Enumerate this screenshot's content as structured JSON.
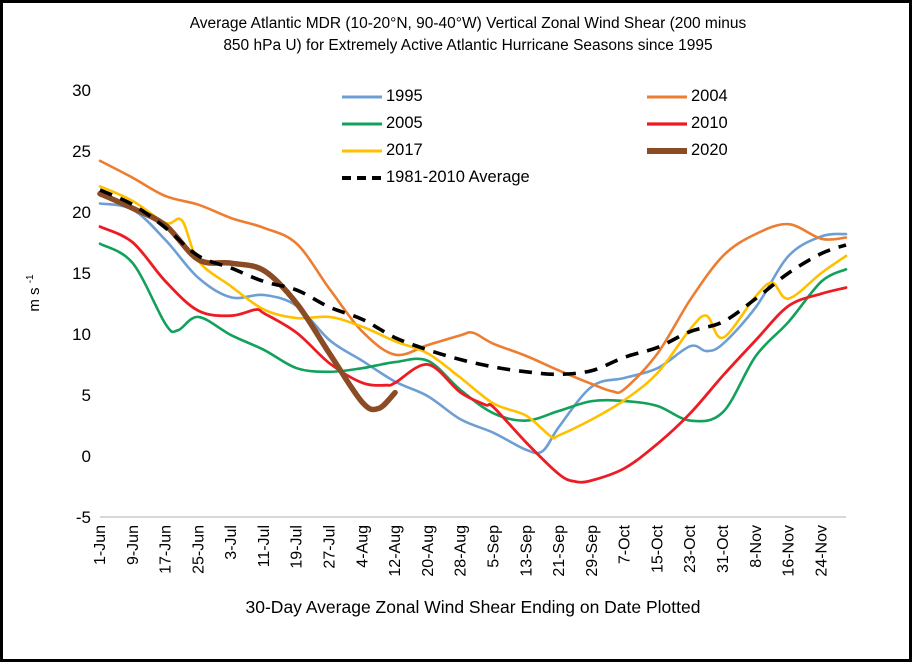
{
  "window": {
    "background": "#ffffff",
    "border_color": "#000000"
  },
  "title": {
    "line1": "Average Atlantic MDR (10-20°N, 90-40°W) Vertical Zonal Wind Shear (200 minus",
    "line2": "850 hPa U) for Extremely Active Atlantic Hurricane Seasons since 1995"
  },
  "y_axis": {
    "label_base": "m s",
    "label_sup": "-1",
    "ticks": [
      30,
      25,
      20,
      15,
      10,
      5,
      0,
      -5
    ],
    "min": -5,
    "max": 30,
    "axis_line_color": "#bfbfbf"
  },
  "x_axis": {
    "title": "30-Day Average Zonal Wind Shear Ending on Date Plotted",
    "tick_labels": [
      "1-Jun",
      "9-Jun",
      "17-Jun",
      "25-Jun",
      "3-Jul",
      "11-Jul",
      "19-Jul",
      "27-Jul",
      "4-Aug",
      "12-Aug",
      "20-Aug",
      "28-Aug",
      "5-Sep",
      "13-Sep",
      "21-Sep",
      "29-Sep",
      "7-Oct",
      "15-Oct",
      "23-Oct",
      "31-Oct",
      "8-Nov",
      "16-Nov",
      "24-Nov"
    ],
    "tick_interval_days": 8,
    "start_date": "1-Jun",
    "end_date": "30-Nov"
  },
  "legend": {
    "columns": [
      [
        "1995",
        "2005",
        "2017",
        "1981-2010 Average"
      ],
      [
        "2004",
        "2010",
        "2020"
      ]
    ]
  },
  "chart_data": {
    "type": "line",
    "title": "Average Atlantic MDR (10-20°N, 90-40°W) Vertical Zonal Wind Shear (200 minus 850 hPa U) for Extremely Active Atlantic Hurricane Seasons since 1995",
    "xlabel": "30-Day Average Zonal Wind Shear Ending on Date Plotted",
    "ylabel": "m s-1",
    "ylim": [
      -5,
      30
    ],
    "x_unit": "days_after_1_Jun",
    "x_domain_days": [
      0,
      182
    ],
    "grid": false,
    "legend_position": "top-inside",
    "series": [
      {
        "name": "1995",
        "color": "#6d9fd4",
        "width": 2.6,
        "dash": null,
        "points": [
          [
            0,
            20.7
          ],
          [
            8,
            20.2
          ],
          [
            16,
            17.7
          ],
          [
            24,
            14.6
          ],
          [
            32,
            13.0
          ],
          [
            40,
            13.2
          ],
          [
            48,
            12.3
          ],
          [
            56,
            9.5
          ],
          [
            64,
            7.8
          ],
          [
            72,
            6.1
          ],
          [
            80,
            4.9
          ],
          [
            88,
            3.0
          ],
          [
            96,
            1.9
          ],
          [
            104,
            0.5
          ],
          [
            108,
            0.4
          ],
          [
            112,
            2.4
          ],
          [
            120,
            5.7
          ],
          [
            128,
            6.4
          ],
          [
            136,
            7.2
          ],
          [
            144,
            9.0
          ],
          [
            148,
            8.6
          ],
          [
            152,
            9.2
          ],
          [
            160,
            12.2
          ],
          [
            168,
            16.4
          ],
          [
            176,
            18.0
          ],
          [
            182,
            18.2
          ]
        ]
      },
      {
        "name": "2004",
        "color": "#ed7d31",
        "width": 2.6,
        "dash": null,
        "points": [
          [
            0,
            24.2
          ],
          [
            8,
            22.8
          ],
          [
            16,
            21.3
          ],
          [
            24,
            20.6
          ],
          [
            32,
            19.5
          ],
          [
            40,
            18.7
          ],
          [
            48,
            17.4
          ],
          [
            56,
            13.7
          ],
          [
            64,
            10.2
          ],
          [
            72,
            8.3
          ],
          [
            80,
            9.1
          ],
          [
            88,
            9.9
          ],
          [
            91,
            10.1
          ],
          [
            96,
            9.2
          ],
          [
            104,
            8.2
          ],
          [
            112,
            7.0
          ],
          [
            120,
            5.9
          ],
          [
            125,
            5.3
          ],
          [
            128,
            5.5
          ],
          [
            136,
            8.4
          ],
          [
            144,
            12.8
          ],
          [
            152,
            16.4
          ],
          [
            160,
            18.2
          ],
          [
            168,
            19.0
          ],
          [
            176,
            17.8
          ],
          [
            182,
            17.9
          ]
        ]
      },
      {
        "name": "2005",
        "color": "#12a15b",
        "width": 2.6,
        "dash": null,
        "points": [
          [
            0,
            17.4
          ],
          [
            8,
            15.8
          ],
          [
            16,
            10.8
          ],
          [
            19,
            10.3
          ],
          [
            24,
            11.4
          ],
          [
            32,
            9.9
          ],
          [
            40,
            8.7
          ],
          [
            48,
            7.2
          ],
          [
            56,
            6.9
          ],
          [
            64,
            7.2
          ],
          [
            72,
            7.7
          ],
          [
            80,
            7.8
          ],
          [
            88,
            5.4
          ],
          [
            96,
            3.5
          ],
          [
            104,
            2.9
          ],
          [
            112,
            3.7
          ],
          [
            120,
            4.5
          ],
          [
            128,
            4.5
          ],
          [
            136,
            4.1
          ],
          [
            144,
            2.9
          ],
          [
            152,
            3.6
          ],
          [
            160,
            8.2
          ],
          [
            168,
            11.0
          ],
          [
            176,
            14.3
          ],
          [
            182,
            15.3
          ]
        ]
      },
      {
        "name": "2010",
        "color": "#ed1c24",
        "width": 2.8,
        "dash": null,
        "points": [
          [
            0,
            18.8
          ],
          [
            8,
            17.5
          ],
          [
            16,
            14.3
          ],
          [
            24,
            11.9
          ],
          [
            32,
            11.5
          ],
          [
            38,
            12.0
          ],
          [
            40,
            11.7
          ],
          [
            48,
            10.1
          ],
          [
            56,
            7.6
          ],
          [
            64,
            6.0
          ],
          [
            70,
            5.8
          ],
          [
            72,
            6.0
          ],
          [
            80,
            7.5
          ],
          [
            88,
            5.2
          ],
          [
            94,
            4.2
          ],
          [
            96,
            4.0
          ],
          [
            104,
            1.1
          ],
          [
            112,
            -1.5
          ],
          [
            116,
            -2.1
          ],
          [
            120,
            -2.0
          ],
          [
            128,
            -1.0
          ],
          [
            136,
            1.0
          ],
          [
            144,
            3.5
          ],
          [
            152,
            6.6
          ],
          [
            160,
            9.5
          ],
          [
            168,
            12.3
          ],
          [
            176,
            13.3
          ],
          [
            182,
            13.8
          ]
        ]
      },
      {
        "name": "2017",
        "color": "#ffc000",
        "width": 2.6,
        "dash": null,
        "points": [
          [
            0,
            22.1
          ],
          [
            8,
            20.9
          ],
          [
            16,
            19.1
          ],
          [
            20,
            19.3
          ],
          [
            24,
            16.0
          ],
          [
            32,
            13.9
          ],
          [
            40,
            12.0
          ],
          [
            48,
            11.3
          ],
          [
            56,
            11.4
          ],
          [
            64,
            10.6
          ],
          [
            72,
            9.4
          ],
          [
            80,
            8.4
          ],
          [
            88,
            6.4
          ],
          [
            96,
            4.3
          ],
          [
            104,
            3.3
          ],
          [
            110,
            1.6
          ],
          [
            112,
            1.7
          ],
          [
            120,
            3.0
          ],
          [
            128,
            4.6
          ],
          [
            136,
            6.8
          ],
          [
            144,
            10.4
          ],
          [
            148,
            11.5
          ],
          [
            152,
            9.7
          ],
          [
            160,
            13.1
          ],
          [
            164,
            14.2
          ],
          [
            168,
            12.9
          ],
          [
            176,
            15.0
          ],
          [
            182,
            16.4
          ]
        ]
      },
      {
        "name": "2020",
        "color": "#8b4b24",
        "width": 5.5,
        "dash": null,
        "points": [
          [
            0,
            21.5
          ],
          [
            8,
            20.3
          ],
          [
            16,
            18.9
          ],
          [
            24,
            16.1
          ],
          [
            32,
            15.8
          ],
          [
            40,
            15.2
          ],
          [
            48,
            12.5
          ],
          [
            56,
            8.4
          ],
          [
            64,
            4.4
          ],
          [
            68,
            3.9
          ],
          [
            72,
            5.2
          ]
        ]
      },
      {
        "name": "1981-2010 Average",
        "color": "#000000",
        "width": 3.6,
        "dash": [
          13,
          9
        ],
        "points": [
          [
            0,
            21.8
          ],
          [
            8,
            20.6
          ],
          [
            16,
            18.7
          ],
          [
            24,
            16.4
          ],
          [
            32,
            15.4
          ],
          [
            40,
            14.3
          ],
          [
            48,
            13.6
          ],
          [
            56,
            12.2
          ],
          [
            64,
            11.2
          ],
          [
            72,
            9.7
          ],
          [
            80,
            8.7
          ],
          [
            88,
            7.9
          ],
          [
            96,
            7.3
          ],
          [
            104,
            6.9
          ],
          [
            112,
            6.7
          ],
          [
            120,
            7.0
          ],
          [
            128,
            8.1
          ],
          [
            136,
            8.9
          ],
          [
            144,
            10.2
          ],
          [
            152,
            11.0
          ],
          [
            160,
            12.9
          ],
          [
            168,
            15.0
          ],
          [
            176,
            16.6
          ],
          [
            182,
            17.3
          ]
        ]
      }
    ]
  }
}
